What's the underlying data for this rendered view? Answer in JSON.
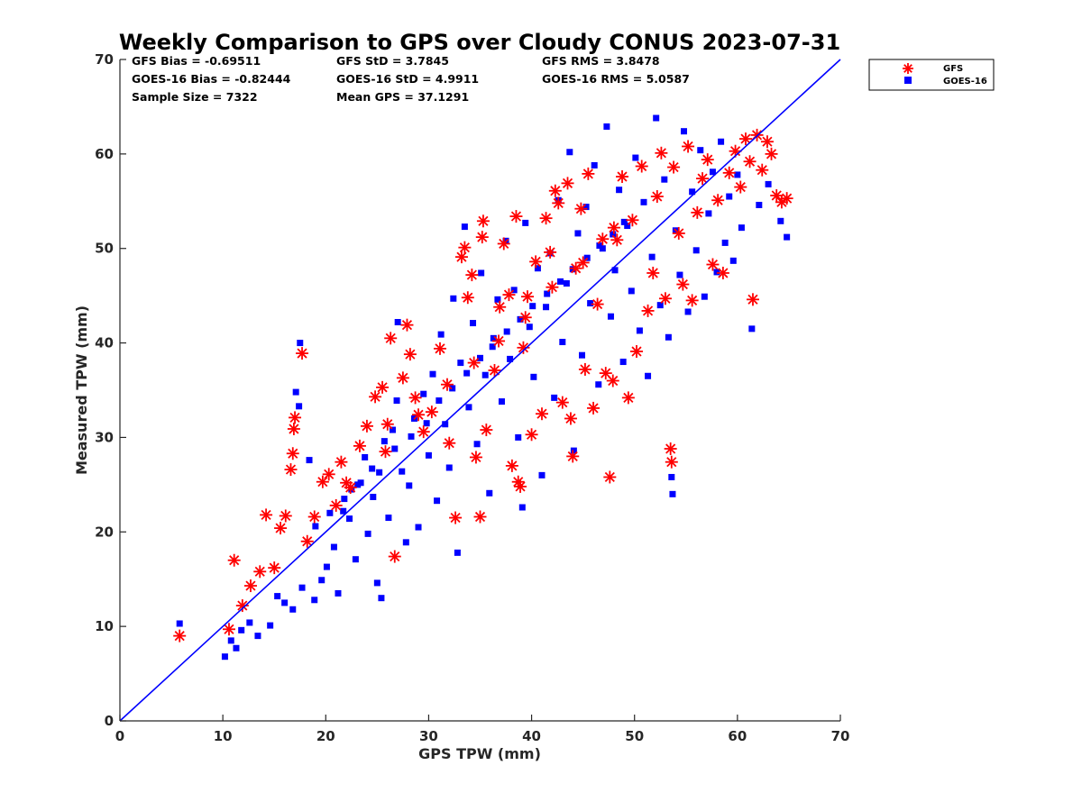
{
  "chart_data": {
    "type": "scatter",
    "title": "Weekly Comparison to GPS over Cloudy CONUS 2023-07-31",
    "xlabel": "GPS TPW (mm)",
    "ylabel": "Measured TPW (mm)",
    "xlim": [
      0,
      70
    ],
    "ylim": [
      0,
      70
    ],
    "xticks": [
      "0",
      "10",
      "20",
      "30",
      "40",
      "50",
      "60",
      "70"
    ],
    "yticks": [
      "0",
      "10",
      "20",
      "30",
      "40",
      "50",
      "60",
      "70"
    ],
    "grid": false,
    "legend_position": "outside-top-right",
    "reference_line": {
      "x": [
        0,
        70
      ],
      "y": [
        0,
        70
      ],
      "color": "#0000ff"
    },
    "stats": {
      "gfs_bias": "GFS Bias = -0.69511",
      "gfs_std": "GFS StD = 3.7845",
      "gfs_rms": "GFS RMS = 3.8478",
      "goes_bias": "GOES-16 Bias = -0.82444",
      "goes_std": "GOES-16 StD = 4.9911",
      "goes_rms": "GOES-16 RMS = 5.0587",
      "sample_size": "Sample Size = 7322",
      "mean_gps": "Mean GPS = 37.1291"
    },
    "series": [
      {
        "name": "GOES-16",
        "marker": "square",
        "color": "#0000ff",
        "points": [
          [
            5.8,
            10.3
          ],
          [
            10.2,
            6.8
          ],
          [
            10.8,
            8.5
          ],
          [
            11.3,
            7.7
          ],
          [
            11.8,
            9.6
          ],
          [
            12.6,
            10.4
          ],
          [
            13.4,
            9.0
          ],
          [
            14.6,
            10.1
          ],
          [
            15.3,
            13.2
          ],
          [
            16.0,
            12.5
          ],
          [
            16.8,
            11.8
          ],
          [
            17.1,
            34.8
          ],
          [
            17.4,
            33.3
          ],
          [
            17.7,
            14.1
          ],
          [
            17.5,
            40.0
          ],
          [
            18.4,
            27.6
          ],
          [
            18.9,
            12.8
          ],
          [
            19.6,
            14.9
          ],
          [
            20.1,
            16.3
          ],
          [
            20.8,
            18.4
          ],
          [
            21.2,
            13.5
          ],
          [
            21.7,
            22.2
          ],
          [
            22.3,
            21.4
          ],
          [
            22.9,
            17.1
          ],
          [
            23.4,
            25.2
          ],
          [
            24.1,
            19.8
          ],
          [
            24.6,
            23.7
          ],
          [
            25.0,
            14.6
          ],
          [
            25.4,
            13.0
          ],
          [
            25.7,
            29.6
          ],
          [
            26.1,
            21.5
          ],
          [
            26.5,
            30.8
          ],
          [
            26.9,
            33.9
          ],
          [
            27.0,
            42.2
          ],
          [
            27.4,
            26.4
          ],
          [
            27.8,
            18.9
          ],
          [
            28.1,
            24.9
          ],
          [
            28.6,
            32.0
          ],
          [
            29.0,
            20.5
          ],
          [
            29.5,
            34.6
          ],
          [
            30.0,
            28.1
          ],
          [
            30.4,
            36.7
          ],
          [
            30.8,
            23.3
          ],
          [
            31.2,
            40.9
          ],
          [
            31.6,
            31.4
          ],
          [
            32.0,
            26.8
          ],
          [
            32.4,
            44.7
          ],
          [
            32.8,
            17.8
          ],
          [
            33.1,
            37.9
          ],
          [
            33.5,
            52.3
          ],
          [
            33.9,
            33.2
          ],
          [
            34.3,
            42.1
          ],
          [
            34.7,
            29.3
          ],
          [
            35.1,
            47.4
          ],
          [
            35.5,
            36.6
          ],
          [
            35.9,
            24.1
          ],
          [
            36.3,
            40.5
          ],
          [
            36.7,
            44.6
          ],
          [
            37.1,
            33.8
          ],
          [
            37.5,
            50.8
          ],
          [
            37.9,
            38.3
          ],
          [
            38.3,
            45.6
          ],
          [
            38.7,
            30.0
          ],
          [
            39.1,
            22.6
          ],
          [
            39.4,
            52.7
          ],
          [
            39.8,
            41.7
          ],
          [
            40.2,
            36.4
          ],
          [
            40.6,
            47.9
          ],
          [
            41.0,
            26.0
          ],
          [
            41.4,
            43.8
          ],
          [
            41.8,
            49.5
          ],
          [
            42.2,
            34.2
          ],
          [
            42.6,
            55.1
          ],
          [
            43.0,
            40.1
          ],
          [
            43.4,
            46.3
          ],
          [
            43.7,
            60.2
          ],
          [
            44.1,
            28.6
          ],
          [
            44.5,
            51.6
          ],
          [
            44.9,
            38.7
          ],
          [
            45.3,
            54.4
          ],
          [
            45.7,
            44.2
          ],
          [
            46.1,
            58.8
          ],
          [
            46.5,
            35.6
          ],
          [
            46.9,
            50.0
          ],
          [
            47.3,
            62.9
          ],
          [
            47.7,
            42.8
          ],
          [
            48.1,
            47.7
          ],
          [
            48.5,
            56.2
          ],
          [
            48.9,
            38.0
          ],
          [
            49.3,
            52.4
          ],
          [
            49.7,
            45.5
          ],
          [
            50.1,
            59.6
          ],
          [
            50.5,
            41.3
          ],
          [
            50.9,
            54.9
          ],
          [
            51.3,
            36.5
          ],
          [
            51.7,
            49.1
          ],
          [
            52.1,
            63.8
          ],
          [
            52.5,
            44.0
          ],
          [
            52.9,
            57.3
          ],
          [
            53.3,
            40.6
          ],
          [
            53.6,
            25.8
          ],
          [
            53.7,
            24.0
          ],
          [
            54.0,
            51.9
          ],
          [
            54.4,
            47.2
          ],
          [
            54.8,
            62.4
          ],
          [
            55.2,
            43.3
          ],
          [
            55.6,
            56.0
          ],
          [
            56.0,
            49.8
          ],
          [
            56.4,
            60.4
          ],
          [
            56.8,
            44.9
          ],
          [
            57.2,
            53.7
          ],
          [
            57.6,
            58.1
          ],
          [
            58.0,
            47.5
          ],
          [
            58.4,
            61.3
          ],
          [
            58.8,
            50.6
          ],
          [
            59.2,
            55.5
          ],
          [
            59.6,
            48.7
          ],
          [
            60.0,
            57.8
          ],
          [
            60.4,
            52.2
          ],
          [
            61.4,
            41.5
          ],
          [
            62.1,
            54.6
          ],
          [
            63.0,
            56.8
          ],
          [
            64.2,
            52.9
          ],
          [
            64.8,
            51.2
          ],
          [
            22.5,
            24.5
          ],
          [
            23.8,
            27.9
          ],
          [
            25.2,
            26.3
          ],
          [
            26.7,
            28.8
          ],
          [
            28.3,
            30.1
          ],
          [
            29.8,
            31.5
          ],
          [
            31.0,
            33.9
          ],
          [
            32.3,
            35.2
          ],
          [
            33.7,
            36.8
          ],
          [
            35.0,
            38.4
          ],
          [
            36.2,
            39.6
          ],
          [
            37.6,
            41.2
          ],
          [
            38.9,
            42.5
          ],
          [
            40.1,
            43.9
          ],
          [
            41.5,
            45.2
          ],
          [
            42.8,
            46.5
          ],
          [
            44.0,
            47.8
          ],
          [
            45.4,
            49.0
          ],
          [
            46.6,
            50.3
          ],
          [
            47.9,
            51.5
          ],
          [
            49.0,
            52.8
          ],
          [
            19.0,
            20.6
          ],
          [
            20.4,
            22.0
          ],
          [
            21.8,
            23.5
          ],
          [
            23.1,
            25.0
          ],
          [
            24.5,
            26.7
          ]
        ]
      },
      {
        "name": "GFS",
        "marker": "asterisk",
        "color": "#ff0000",
        "points": [
          [
            5.8,
            9.0
          ],
          [
            10.6,
            9.7
          ],
          [
            11.1,
            17.0
          ],
          [
            11.9,
            12.2
          ],
          [
            12.7,
            14.3
          ],
          [
            13.6,
            15.8
          ],
          [
            14.2,
            21.8
          ],
          [
            15.0,
            16.2
          ],
          [
            15.6,
            20.4
          ],
          [
            16.1,
            21.7
          ],
          [
            16.6,
            26.6
          ],
          [
            16.8,
            28.3
          ],
          [
            16.9,
            30.9
          ],
          [
            17.0,
            32.1
          ],
          [
            17.7,
            38.9
          ],
          [
            18.2,
            19.0
          ],
          [
            18.9,
            21.6
          ],
          [
            19.7,
            25.3
          ],
          [
            20.3,
            26.1
          ],
          [
            21.0,
            22.8
          ],
          [
            21.5,
            27.4
          ],
          [
            22.4,
            24.7
          ],
          [
            23.3,
            29.1
          ],
          [
            24.0,
            31.2
          ],
          [
            24.8,
            34.3
          ],
          [
            25.5,
            35.3
          ],
          [
            26.0,
            31.4
          ],
          [
            26.3,
            40.5
          ],
          [
            26.7,
            17.4
          ],
          [
            27.5,
            36.3
          ],
          [
            27.9,
            41.9
          ],
          [
            28.2,
            38.8
          ],
          [
            28.7,
            34.2
          ],
          [
            29.5,
            30.6
          ],
          [
            30.3,
            32.7
          ],
          [
            31.1,
            39.4
          ],
          [
            32.0,
            29.4
          ],
          [
            32.6,
            21.5
          ],
          [
            33.2,
            49.1
          ],
          [
            33.5,
            50.1
          ],
          [
            33.8,
            44.8
          ],
          [
            34.2,
            47.2
          ],
          [
            34.6,
            27.9
          ],
          [
            35.0,
            21.6
          ],
          [
            35.2,
            51.2
          ],
          [
            35.3,
            52.9
          ],
          [
            35.6,
            30.8
          ],
          [
            36.4,
            37.1
          ],
          [
            36.9,
            43.8
          ],
          [
            37.3,
            50.5
          ],
          [
            37.8,
            45.1
          ],
          [
            38.1,
            27.0
          ],
          [
            38.5,
            53.4
          ],
          [
            38.7,
            25.3
          ],
          [
            38.9,
            24.8
          ],
          [
            39.2,
            39.5
          ],
          [
            39.6,
            44.9
          ],
          [
            40.0,
            30.3
          ],
          [
            40.4,
            48.6
          ],
          [
            41.0,
            32.5
          ],
          [
            41.4,
            53.2
          ],
          [
            41.8,
            49.6
          ],
          [
            42.3,
            56.1
          ],
          [
            42.6,
            54.8
          ],
          [
            43.0,
            33.7
          ],
          [
            43.5,
            56.9
          ],
          [
            43.8,
            32.0
          ],
          [
            44.0,
            28.0
          ],
          [
            44.3,
            47.9
          ],
          [
            44.8,
            54.2
          ],
          [
            45.2,
            37.2
          ],
          [
            45.5,
            57.9
          ],
          [
            46.0,
            33.1
          ],
          [
            46.4,
            44.1
          ],
          [
            46.9,
            51.0
          ],
          [
            47.2,
            36.8
          ],
          [
            47.6,
            25.8
          ],
          [
            47.9,
            36.0
          ],
          [
            48.3,
            50.9
          ],
          [
            48.8,
            57.6
          ],
          [
            49.4,
            34.2
          ],
          [
            49.8,
            53.0
          ],
          [
            50.2,
            39.1
          ],
          [
            50.7,
            58.7
          ],
          [
            51.3,
            43.4
          ],
          [
            51.8,
            47.4
          ],
          [
            52.2,
            55.5
          ],
          [
            52.6,
            60.1
          ],
          [
            53.0,
            44.7
          ],
          [
            53.5,
            28.8
          ],
          [
            53.6,
            27.4
          ],
          [
            53.8,
            58.6
          ],
          [
            54.3,
            51.6
          ],
          [
            54.7,
            46.2
          ],
          [
            55.2,
            60.8
          ],
          [
            55.6,
            44.5
          ],
          [
            56.1,
            53.8
          ],
          [
            56.6,
            57.4
          ],
          [
            57.1,
            59.4
          ],
          [
            57.6,
            48.3
          ],
          [
            58.1,
            55.1
          ],
          [
            58.6,
            47.4
          ],
          [
            59.2,
            58.0
          ],
          [
            59.8,
            60.3
          ],
          [
            60.3,
            56.5
          ],
          [
            60.8,
            61.6
          ],
          [
            61.2,
            59.2
          ],
          [
            61.5,
            44.6
          ],
          [
            61.9,
            62.0
          ],
          [
            62.4,
            58.3
          ],
          [
            62.9,
            61.3
          ],
          [
            63.3,
            60.0
          ],
          [
            63.8,
            55.6
          ],
          [
            64.3,
            54.9
          ],
          [
            64.8,
            55.3
          ],
          [
            22.0,
            25.2
          ],
          [
            25.8,
            28.5
          ],
          [
            29.0,
            32.4
          ],
          [
            31.8,
            35.6
          ],
          [
            34.4,
            37.9
          ],
          [
            36.8,
            40.2
          ],
          [
            39.4,
            42.7
          ],
          [
            42.0,
            45.9
          ],
          [
            45.0,
            48.5
          ],
          [
            48.0,
            52.2
          ]
        ]
      }
    ]
  }
}
